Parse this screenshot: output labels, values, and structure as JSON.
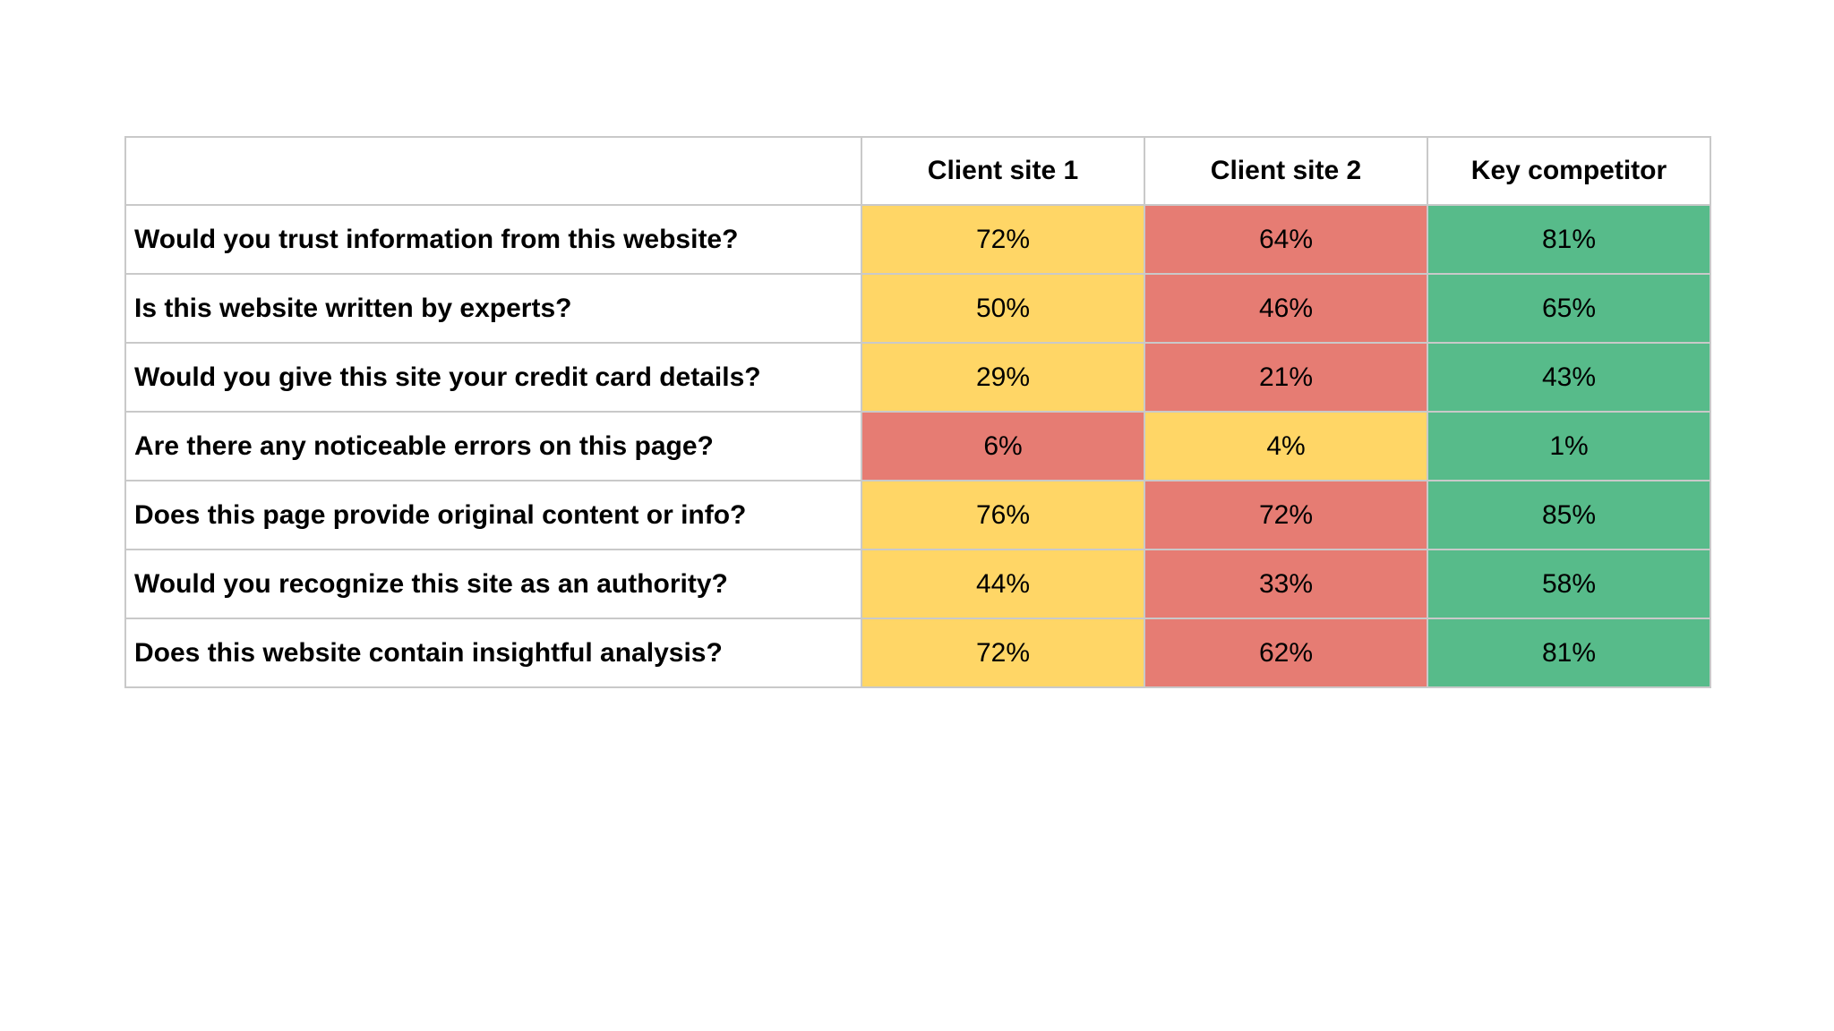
{
  "page": {
    "background": "#ffffff"
  },
  "table": {
    "columns": [
      {
        "label": ""
      },
      {
        "label": "Client site 1"
      },
      {
        "label": "Client site 2"
      },
      {
        "label": "Key competitor"
      }
    ],
    "rows": [
      {
        "question": "Would you trust information from this website?",
        "cells": [
          {
            "value": "72%",
            "color": "yellow"
          },
          {
            "value": "64%",
            "color": "red"
          },
          {
            "value": "81%",
            "color": "green"
          }
        ]
      },
      {
        "question": "Is this website written by experts?",
        "cells": [
          {
            "value": "50%",
            "color": "yellow"
          },
          {
            "value": "46%",
            "color": "red"
          },
          {
            "value": "65%",
            "color": "green"
          }
        ]
      },
      {
        "question": "Would you give this site your credit card details?",
        "cells": [
          {
            "value": "29%",
            "color": "yellow"
          },
          {
            "value": "21%",
            "color": "red"
          },
          {
            "value": "43%",
            "color": "green"
          }
        ]
      },
      {
        "question": "Are there any noticeable errors on this page?",
        "cells": [
          {
            "value": "6%",
            "color": "red"
          },
          {
            "value": "4%",
            "color": "yellow"
          },
          {
            "value": "1%",
            "color": "green"
          }
        ]
      },
      {
        "question": "Does this page provide original content or info?",
        "cells": [
          {
            "value": "76%",
            "color": "yellow"
          },
          {
            "value": "72%",
            "color": "red"
          },
          {
            "value": "85%",
            "color": "green"
          }
        ]
      },
      {
        "question": "Would you recognize this site as an authority?",
        "cells": [
          {
            "value": "44%",
            "color": "yellow"
          },
          {
            "value": "33%",
            "color": "red"
          },
          {
            "value": "58%",
            "color": "green"
          }
        ]
      },
      {
        "question": "Does this website contain insightful analysis?",
        "cells": [
          {
            "value": "72%",
            "color": "yellow"
          },
          {
            "value": "62%",
            "color": "red"
          },
          {
            "value": "81%",
            "color": "green"
          }
        ]
      }
    ],
    "colors": {
      "red": "#E67C73",
      "yellow": "#FFD666",
      "green": "#57BB8A"
    },
    "border_color": "#C9C9C9"
  },
  "chart_data": {
    "type": "table",
    "title": "",
    "categories": [
      "Would you trust information from this website?",
      "Is this website written by experts?",
      "Would you give this site your credit card details?",
      "Are there any noticeable errors on this page?",
      "Does this page provide original content or info?",
      "Would you recognize this site as an authority?",
      "Does this website contain insightful analysis?"
    ],
    "series": [
      {
        "name": "Client site 1",
        "values": [
          72,
          50,
          29,
          6,
          76,
          44,
          72
        ]
      },
      {
        "name": "Client site 2",
        "values": [
          64,
          46,
          21,
          4,
          72,
          33,
          62
        ]
      },
      {
        "name": "Key competitor",
        "values": [
          81,
          65,
          43,
          1,
          85,
          58,
          81
        ]
      }
    ],
    "value_unit": "%",
    "cell_color_semantics": {
      "green": "best score in row",
      "yellow": "middle score in row",
      "red": "worst score in row"
    },
    "cell_colors_by_series": [
      [
        "yellow",
        "yellow",
        "yellow",
        "red",
        "yellow",
        "yellow",
        "yellow"
      ],
      [
        "red",
        "red",
        "red",
        "yellow",
        "red",
        "red",
        "red"
      ],
      [
        "green",
        "green",
        "green",
        "green",
        "green",
        "green",
        "green"
      ]
    ],
    "layout": {
      "grid": true,
      "legend_position": "none"
    }
  }
}
